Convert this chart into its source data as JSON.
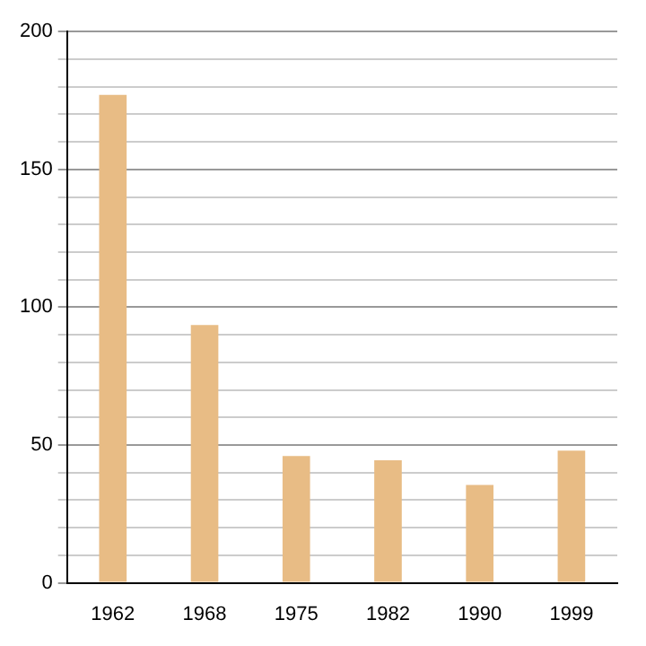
{
  "chart_data": {
    "type": "bar",
    "categories": [
      "1962",
      "1968",
      "1975",
      "1982",
      "1990",
      "1999"
    ],
    "values": [
      177,
      93.5,
      46,
      44.5,
      35.5,
      48
    ],
    "color": "#e8bc85",
    "ylim": [
      0,
      200
    ],
    "yticks": [
      0,
      {
        "value": 10,
        "label": null
      },
      {
        "value": 20,
        "label": null
      },
      {
        "value": 30,
        "label": null
      },
      {
        "value": 40,
        "label": null
      },
      50,
      {
        "value": 60,
        "label": null
      },
      {
        "value": 70,
        "label": null
      },
      {
        "value": 80,
        "label": null
      },
      {
        "value": 90,
        "label": null
      },
      100,
      {
        "value": 110,
        "label": null
      },
      {
        "value": 120,
        "label": null
      },
      {
        "value": 130,
        "label": null
      },
      {
        "value": 140,
        "label": null
      },
      150,
      {
        "value": 160,
        "label": null
      },
      {
        "value": 170,
        "label": null
      },
      {
        "value": 180,
        "label": null
      },
      {
        "value": 190,
        "label": null
      },
      200
    ],
    "grid": "y"
  }
}
